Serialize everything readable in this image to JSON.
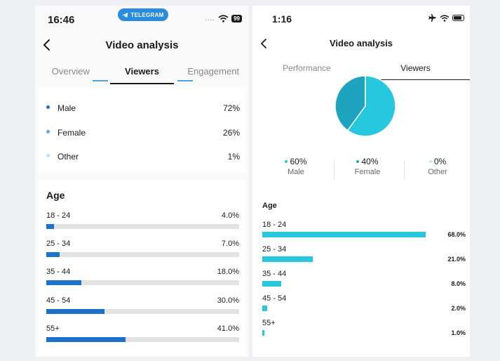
{
  "left": {
    "status": {
      "time": "16:46",
      "badge": "TELEGRAM",
      "dots": "....",
      "battery": "99"
    },
    "header": {
      "title": "Video analysis"
    },
    "tabs": [
      {
        "label": "Overview",
        "active": false
      },
      {
        "label": "Viewers",
        "active": true
      },
      {
        "label": "Engagement",
        "active": false
      }
    ],
    "gender": [
      {
        "label": "Male",
        "value": "72%",
        "color": "#1c6fc4"
      },
      {
        "label": "Female",
        "value": "26%",
        "color": "#5ca8e6"
      },
      {
        "label": "Other",
        "value": "1%",
        "color": "#bfe0f7"
      }
    ],
    "age": {
      "title": "Age",
      "rows": [
        {
          "label": "18 - 24",
          "value": "4.0%",
          "pct": 4
        },
        {
          "label": "25 - 34",
          "value": "7.0%",
          "pct": 7
        },
        {
          "label": "35 - 44",
          "value": "18.0%",
          "pct": 18
        },
        {
          "label": "45 - 54",
          "value": "30.0%",
          "pct": 30
        },
        {
          "label": "55+",
          "value": "41.0%",
          "pct": 41
        }
      ]
    }
  },
  "right": {
    "status": {
      "time": "1:16"
    },
    "header": {
      "title": "Video analysis"
    },
    "tabs": [
      {
        "label": "Performance",
        "active": false
      },
      {
        "label": "Viewers",
        "active": true
      }
    ],
    "pie": [
      {
        "label": "Male",
        "value": "60%",
        "pct": 60,
        "color": "#27c8dd"
      },
      {
        "label": "Female",
        "value": "40%",
        "pct": 40,
        "color": "#1ea4be"
      },
      {
        "label": "Other",
        "value": "0%",
        "pct": 0,
        "color": "#bdeef5"
      }
    ],
    "age": {
      "title": "Age",
      "rows": [
        {
          "label": "18 - 24",
          "value": "68.0%",
          "pct": 68
        },
        {
          "label": "25 - 34",
          "value": "21.0%",
          "pct": 21
        },
        {
          "label": "35 - 44",
          "value": "8.0%",
          "pct": 8
        },
        {
          "label": "45 - 54",
          "value": "2.0%",
          "pct": 2
        },
        {
          "label": "55+",
          "value": "1.0%",
          "pct": 1
        }
      ]
    }
  }
}
